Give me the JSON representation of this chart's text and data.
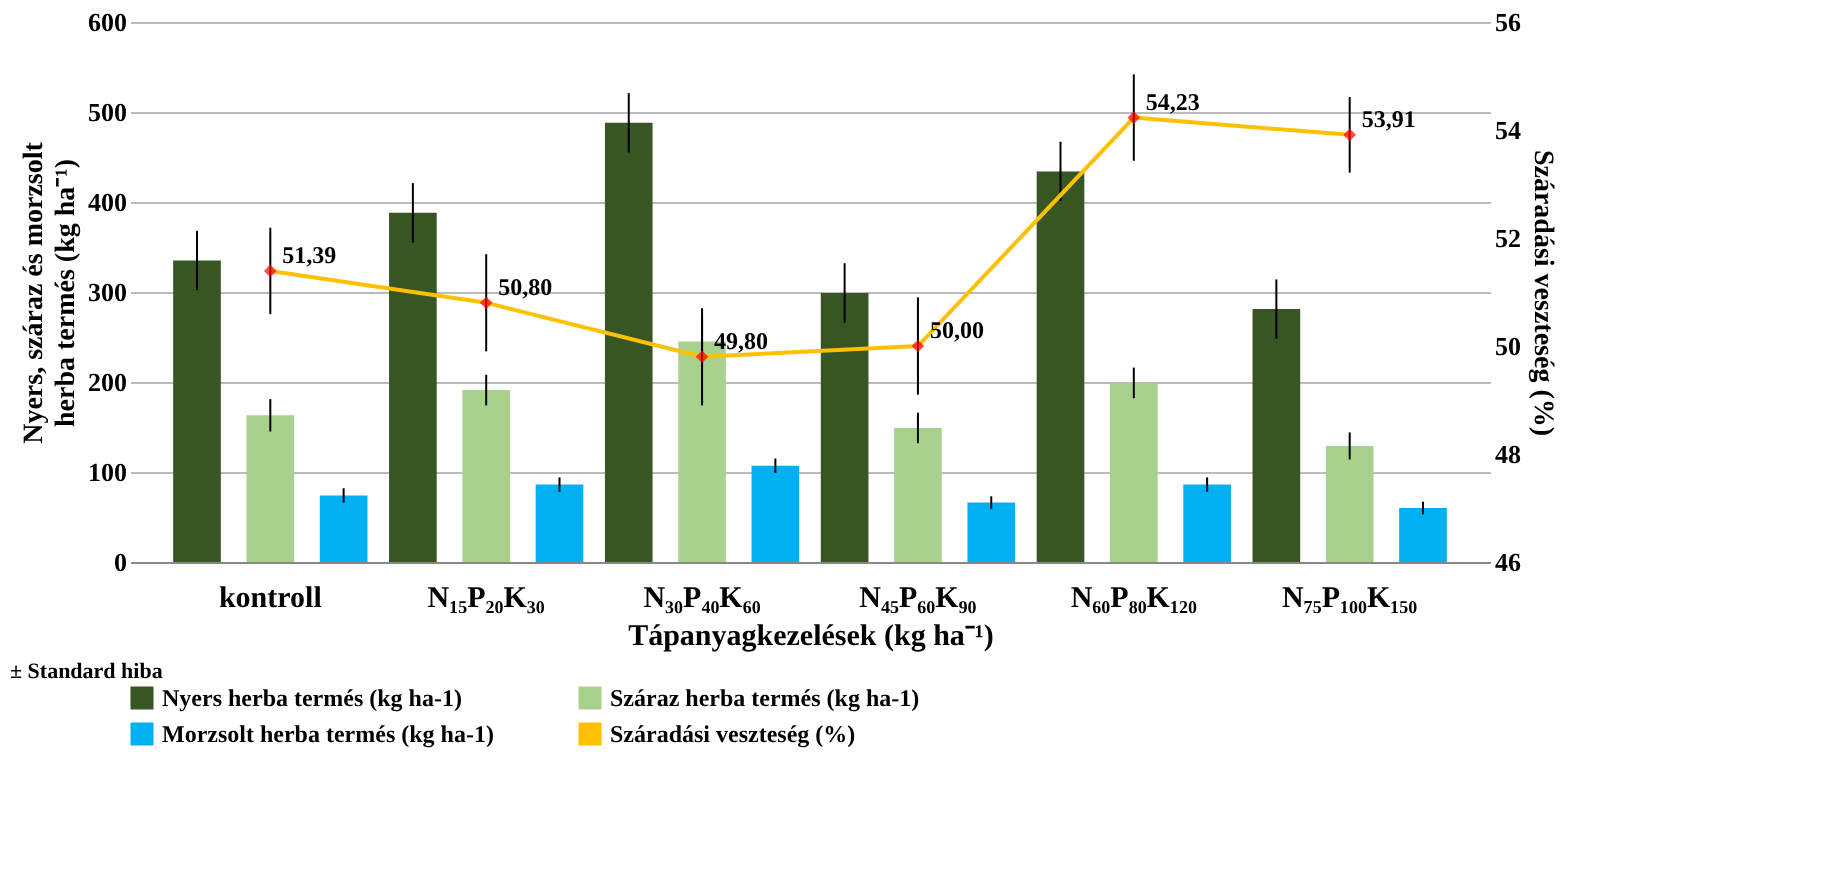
{
  "chart_data": {
    "type": "bar",
    "xlabel": "Tápanyagkezelések (kg ha⁻¹)",
    "ylabel": "Nyers, száraz és morzsolt herba termés (kg ha⁻¹)",
    "y2label": "Száradási veszteség (%)",
    "categories": [
      "kontroll",
      "N₁₅P₂₀K₃₀",
      "N₃₀P₄₀K₆₀",
      "N₄₅P₆₀K₉₀",
      "N₆₀P₈₀K₁₂₀",
      "N₇₅P₁₀₀K₁₅₀"
    ],
    "series": [
      {
        "name": "Nyers herba termés (kg ha-1)",
        "color": "#375623",
        "values": [
          335,
          388,
          488,
          299,
          434,
          281
        ],
        "errors": [
          33,
          33,
          33,
          33,
          33,
          33
        ]
      },
      {
        "name": "Száraz herba termés (kg ha-1)",
        "color": "#a9d18e",
        "values": [
          163,
          191,
          245,
          149,
          199,
          129
        ],
        "errors": [
          18,
          17,
          28,
          17,
          17,
          15
        ]
      },
      {
        "name": "Morzsolt herba termés (kg ha-1)",
        "color": "#00b0f0",
        "values": [
          74,
          86,
          107,
          66,
          86,
          60
        ],
        "errors": [
          8,
          8,
          8,
          7,
          8,
          7
        ]
      },
      {
        "name": "Száradási veszteség (%)",
        "type": "line",
        "axis": "y2",
        "color": "#ffc000",
        "marker": "diamond",
        "values": [
          51.39,
          50.8,
          49.8,
          50.0,
          54.23,
          53.91
        ],
        "errors": [
          0.8,
          0.9,
          0.9,
          0.9,
          0.8,
          0.7
        ],
        "value_labels": [
          "51,39",
          "50,80",
          "49,80",
          "50,00",
          "54,23",
          "53,91"
        ]
      }
    ],
    "ylim": [
      0,
      600
    ],
    "yticks": [
      0,
      100,
      200,
      300,
      400,
      500,
      600
    ],
    "y2lim": [
      46,
      56
    ],
    "y2ticks": [
      46,
      48,
      50,
      52,
      54,
      56
    ],
    "grid": "y",
    "legend": "bottom",
    "annotations": [
      "± Standard hiba"
    ]
  }
}
